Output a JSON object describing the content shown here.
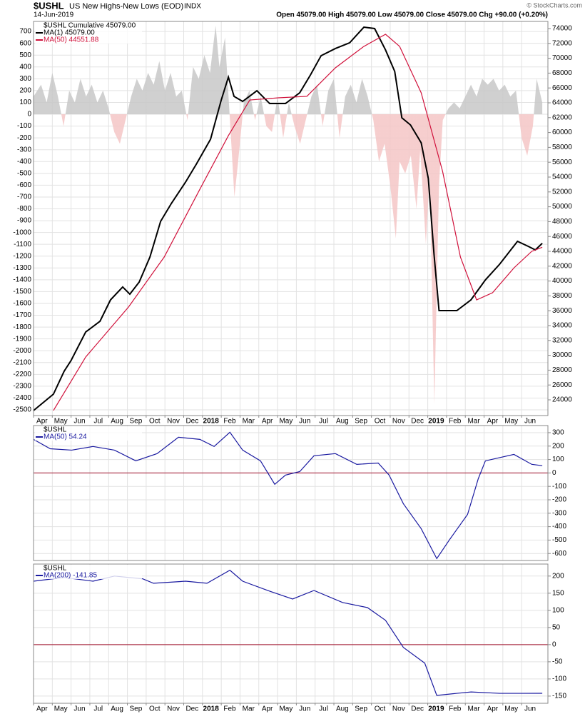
{
  "header": {
    "symbol": "$USHL",
    "title": "US New Highs-New Lows (EOD)",
    "exchange": "INDX",
    "date": "14-Jun-2019",
    "quote": "Open 45079.00  High 45079.00  Low 45079.00  Close 45079.00  Chg +90.00 (+0.20%)",
    "credit": "© StockCharts.com"
  },
  "chart_data": [
    {
      "type": "line",
      "legend_title": "$USHL Cumulative 45079.00",
      "xlim": [
        0,
        27.4
      ],
      "xticks": [
        {
          "value": 0,
          "label": "Apr"
        },
        {
          "value": 1,
          "label": "May"
        },
        {
          "value": 2,
          "label": "Jun"
        },
        {
          "value": 3,
          "label": "Jul"
        },
        {
          "value": 4,
          "label": "Aug"
        },
        {
          "value": 5,
          "label": "Sep"
        },
        {
          "value": 6,
          "label": "Oct"
        },
        {
          "value": 7,
          "label": "Nov"
        },
        {
          "value": 8,
          "label": "Dec"
        },
        {
          "value": 9,
          "label": "2018"
        },
        {
          "value": 10,
          "label": "Feb"
        },
        {
          "value": 11,
          "label": "Mar"
        },
        {
          "value": 12,
          "label": "Apr"
        },
        {
          "value": 13,
          "label": "May"
        },
        {
          "value": 14,
          "label": "Jun"
        },
        {
          "value": 15,
          "label": "Jul"
        },
        {
          "value": 16,
          "label": "Aug"
        },
        {
          "value": 17,
          "label": "Sep"
        },
        {
          "value": 18,
          "label": "Oct"
        },
        {
          "value": 19,
          "label": "Nov"
        },
        {
          "value": 20,
          "label": "Dec"
        },
        {
          "value": 21,
          "label": "2019"
        },
        {
          "value": 22,
          "label": "Feb"
        },
        {
          "value": 23,
          "label": "Mar"
        },
        {
          "value": 24,
          "label": "Apr"
        },
        {
          "value": 25,
          "label": "May"
        },
        {
          "value": 26,
          "label": "Jun"
        }
      ],
      "ylim": [
        -2548,
        785
      ],
      "yticks": [
        700,
        600,
        500,
        400,
        300,
        200,
        100,
        0,
        -100,
        -200,
        -300,
        -400,
        -500,
        -600,
        -700,
        -800,
        -900,
        -1000,
        -1100,
        -1200,
        -1300,
        -1400,
        -1500,
        -1600,
        -1700,
        -1800,
        -1900,
        -2000,
        -2100,
        -2200,
        -2300,
        -2400,
        -2500
      ],
      "y2lim": [
        21885,
        74960
      ],
      "y2ticks": [
        74000,
        72000,
        70000,
        68000,
        66000,
        64000,
        62000,
        60000,
        58000,
        56000,
        54000,
        52000,
        50000,
        48000,
        46000,
        44000,
        42000,
        40000,
        38000,
        36000,
        34000,
        32000,
        30000,
        28000,
        26000,
        24000
      ],
      "grid": true,
      "series": [
        {
          "style": "area",
          "color": "#c8c8c8",
          "negative_color": "#f4c6c6",
          "x": [
            0,
            0.4,
            0.7,
            1.0,
            1.3,
            1.6,
            1.9,
            2.2,
            2.5,
            2.8,
            3.1,
            3.4,
            3.7,
            4.0,
            4.3,
            4.6,
            4.9,
            5.2,
            5.5,
            5.8,
            6.1,
            6.4,
            6.7,
            7.0,
            7.3,
            7.6,
            7.9,
            8.2,
            8.5,
            8.8,
            9.1,
            9.4,
            9.7,
            9.9,
            10.2,
            10.5,
            10.7,
            10.9,
            11.2,
            11.5,
            11.8,
            12.1,
            12.4,
            12.7,
            13.0,
            13.3,
            13.6,
            13.9,
            14.2,
            14.5,
            14.8,
            15.1,
            15.4,
            15.7,
            16.0,
            16.3,
            16.6,
            16.9,
            17.2,
            17.5,
            17.8,
            18.1,
            18.4,
            18.7,
            19.0,
            19.3,
            19.5,
            19.8,
            20.1,
            20.4,
            20.6,
            20.9,
            21.1,
            21.35,
            21.6,
            21.8,
            22.1,
            22.4,
            22.7,
            23.0,
            23.3,
            23.6,
            23.9,
            24.2,
            24.5,
            24.8,
            25.1,
            25.4,
            25.7,
            26.0,
            26.3,
            26.6,
            26.8,
            27.1
          ],
          "values": [
            150,
            250,
            100,
            350,
            150,
            -100,
            200,
            100,
            300,
            150,
            250,
            100,
            200,
            50,
            -150,
            -250,
            -50,
            150,
            300,
            200,
            350,
            250,
            450,
            200,
            350,
            150,
            200,
            -50,
            400,
            300,
            500,
            350,
            750,
            400,
            650,
            -150,
            -700,
            -400,
            100,
            200,
            -50,
            150,
            -100,
            -150,
            150,
            -200,
            100,
            -100,
            -250,
            -50,
            150,
            250,
            -100,
            200,
            300,
            -200,
            150,
            250,
            100,
            300,
            150,
            -50,
            -400,
            -250,
            -600,
            -1050,
            -400,
            -500,
            -350,
            -800,
            -300,
            -1100,
            -500,
            -2450,
            -600,
            -50,
            50,
            100,
            50,
            150,
            250,
            150,
            300,
            250,
            300,
            200,
            250,
            150,
            200,
            -200,
            -350,
            -100,
            300,
            100
          ]
        },
        {
          "name": "MA(1) 45079.00",
          "color": "#000000",
          "axis": "y2",
          "width": 2,
          "x": [
            0,
            1.06,
            1.63,
            2.0,
            2.78,
            3.54,
            4.1,
            4.75,
            5.13,
            5.63,
            6.2,
            6.77,
            7.34,
            8.1,
            8.67,
            9.43,
            10.0,
            10.38,
            10.68,
            11.14,
            11.9,
            12.58,
            13.42,
            14.18,
            14.75,
            15.32,
            16.08,
            16.84,
            17.6,
            18.17,
            18.75,
            19.24,
            19.62,
            20.08,
            20.65,
            21.03,
            21.33,
            21.6,
            22.55,
            23.3,
            24.07,
            24.83,
            25.78,
            26.35,
            26.73,
            27.1
          ],
          "values": [
            22560,
            24770,
            27850,
            29300,
            33140,
            34580,
            37460,
            39200,
            38230,
            39870,
            43230,
            48040,
            50440,
            53330,
            55730,
            59100,
            64380,
            67460,
            64870,
            64190,
            65630,
            63900,
            63900,
            65350,
            67750,
            70350,
            71310,
            72080,
            74190,
            74000,
            71120,
            68230,
            61980,
            61020,
            58620,
            53810,
            43710,
            36020,
            36020,
            37460,
            40150,
            42270,
            45350,
            44670,
            44190,
            45079
          ]
        },
        {
          "name": "MA(50) 44551.88",
          "color": "#d0103a",
          "axis": "y2",
          "width": 1.2,
          "x": [
            1.06,
            2.78,
            5.06,
            6.96,
            8.86,
            10.38,
            11.52,
            13.04,
            14.56,
            16.08,
            17.6,
            18.75,
            19.5,
            20.65,
            21.79,
            22.74,
            23.6,
            24.45,
            25.6,
            26.54,
            27.1
          ],
          "values": [
            22560,
            29770,
            36500,
            43230,
            52360,
            59580,
            64380,
            64670,
            64870,
            68710,
            71600,
            73230,
            71600,
            65350,
            54770,
            43230,
            37460,
            38420,
            41790,
            44000,
            44551.88
          ]
        }
      ]
    },
    {
      "type": "line",
      "legend_title": "$USHL",
      "xlim": [
        0,
        27.4
      ],
      "ylim": [
        -652,
        353
      ],
      "y2ticks": [
        300,
        200,
        100,
        0,
        -100,
        -200,
        -300,
        -400,
        -500,
        -600
      ],
      "zero_line": 0,
      "zero_color": "#a0102a",
      "grid": true,
      "series": [
        {
          "name": "MA(50) 54.24",
          "color": "#1a1aa0",
          "width": 1.2,
          "x": [
            0,
            0.89,
            2.03,
            3.17,
            4.31,
            5.45,
            6.58,
            7.72,
            8.86,
            9.62,
            10.46,
            11.14,
            12.09,
            12.85,
            13.42,
            14.18,
            14.94,
            16.08,
            17.22,
            18.36,
            18.94,
            19.7,
            20.65,
            21.48,
            22.17,
            23.12,
            23.69,
            24.07,
            25.59,
            26.54,
            27.1
          ],
          "values": [
            250,
            180,
            170,
            197,
            170,
            90,
            144,
            266,
            250,
            197,
            303,
            170,
            90,
            -85,
            -16,
            10,
            128,
            144,
            64,
            74,
            -16,
            -229,
            -415,
            -638,
            -495,
            -309,
            -43,
            90,
            138,
            64,
            54.24
          ]
        }
      ]
    },
    {
      "type": "line",
      "legend_title": "$USHL",
      "xlim": [
        0,
        27.4
      ],
      "xticks": [
        {
          "value": 0,
          "label": "Apr"
        },
        {
          "value": 1,
          "label": "May"
        },
        {
          "value": 2,
          "label": "Jun"
        },
        {
          "value": 3,
          "label": "Jul"
        },
        {
          "value": 4,
          "label": "Aug"
        },
        {
          "value": 5,
          "label": "Sep"
        },
        {
          "value": 6,
          "label": "Oct"
        },
        {
          "value": 7,
          "label": "Nov"
        },
        {
          "value": 8,
          "label": "Dec"
        },
        {
          "value": 9,
          "label": "2018"
        },
        {
          "value": 10,
          "label": "Feb"
        },
        {
          "value": 11,
          "label": "Mar"
        },
        {
          "value": 12,
          "label": "Apr"
        },
        {
          "value": 13,
          "label": "May"
        },
        {
          "value": 14,
          "label": "Jun"
        },
        {
          "value": 15,
          "label": "Jul"
        },
        {
          "value": 16,
          "label": "Aug"
        },
        {
          "value": 17,
          "label": "Sep"
        },
        {
          "value": 18,
          "label": "Oct"
        },
        {
          "value": 19,
          "label": "Nov"
        },
        {
          "value": 20,
          "label": "Dec"
        },
        {
          "value": 21,
          "label": "2019"
        },
        {
          "value": 22,
          "label": "Feb"
        },
        {
          "value": 23,
          "label": "Mar"
        },
        {
          "value": 24,
          "label": "Apr"
        },
        {
          "value": 25,
          "label": "May"
        },
        {
          "value": 26,
          "label": "Jun"
        }
      ],
      "ylim": [
        -171,
        235
      ],
      "y2ticks": [
        200,
        150,
        100,
        50,
        0,
        -50,
        -100,
        -150
      ],
      "zero_line": 0,
      "zero_color": "#a0102a",
      "grid": true,
      "series": [
        {
          "name": "MA(200) -141.85",
          "color": "#1a1aa0",
          "width": 1.2,
          "x": [
            0,
            1.63,
            3.17,
            4.31,
            5.82,
            6.39,
            8.1,
            9.24,
            10.46,
            11.14,
            12.47,
            13.8,
            14.94,
            16.46,
            17.79,
            18.75,
            19.7,
            20.84,
            21.48,
            22.55,
            23.31,
            24.83,
            25.97,
            27.1
          ],
          "values": [
            185,
            196,
            185,
            200,
            192,
            179,
            185,
            179,
            217,
            185,
            158,
            133,
            158,
            123,
            108,
            71,
            -8,
            -54,
            -148,
            -142,
            -138,
            -142,
            -142,
            -141.85
          ]
        }
      ]
    }
  ]
}
